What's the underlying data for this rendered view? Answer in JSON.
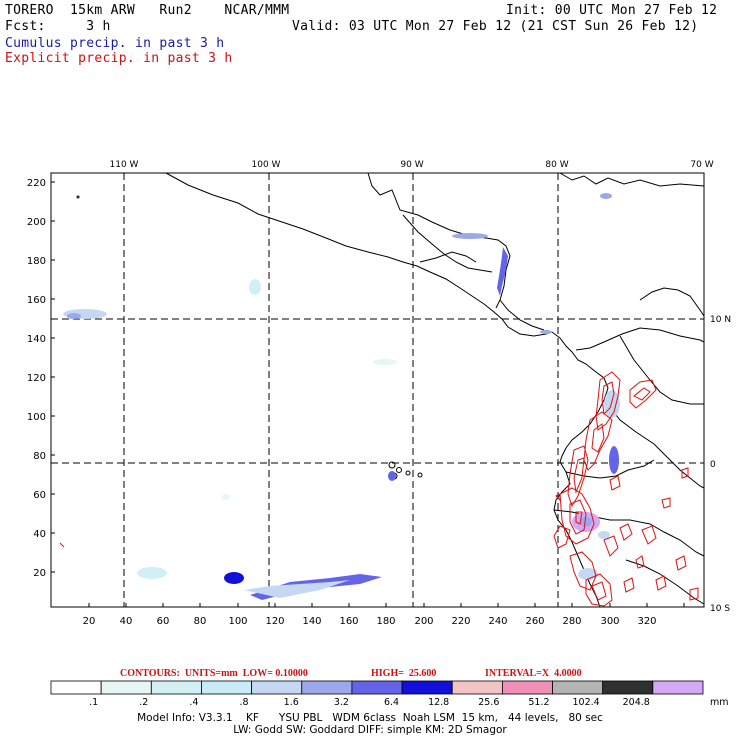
{
  "header": {
    "model": "TORERO  15km ARW   Run2    NCAR/MMM",
    "init": "Init: 00 UTC Mon 27 Feb 12",
    "fcst": "Fcst:     3 h",
    "valid": "Valid: 03 UTC Mon 27 Feb 12 (21 CST Sun 26 Feb 12)",
    "field1": "Cumulus precip. in past 3 h",
    "field2": "Explicit precip. in past 3 h"
  },
  "map": {
    "lon_labels": [
      "110 W",
      "100 W",
      "90 W",
      "80 W",
      "70 W"
    ],
    "lat_labels": [
      "10 N",
      "0",
      "10 S"
    ],
    "x_ticks": [
      "20",
      "40",
      "60",
      "80",
      "100",
      "120",
      "140",
      "160",
      "180",
      "200",
      "220",
      "240",
      "260",
      "280",
      "300",
      "320"
    ],
    "y_ticks": [
      "220",
      "200",
      "180",
      "160",
      "140",
      "120",
      "100",
      "80",
      "60",
      "40",
      "20"
    ],
    "contour_color": "#e01010"
  },
  "contour_caption": {
    "units": "CONTOURS:  UNITS=mm  LOW= 0.10000",
    "high": "HIGH=  25.600",
    "interval": "INTERVAL=X  4.0000"
  },
  "legend": {
    "values": [
      ".1",
      ".2",
      ".4",
      ".8",
      "1.6",
      "3.2",
      "6.4",
      "12.8",
      "25.6",
      "51.2",
      "102.4",
      "204.8"
    ],
    "unit": "mm",
    "colors": [
      "#ffffff",
      "#e6f6f6",
      "#d2f0f4",
      "#c8ecf6",
      "#c4d8f4",
      "#9ca8ec",
      "#6464e8",
      "#1010d8",
      "#f4c4c4",
      "#f090b8",
      "#b4b4b4",
      "#303030",
      "#d4a8f4"
    ]
  },
  "footer": {
    "line1": "Model Info: V3.3.1    KF      YSU PBL   WDM 6class  Noah LSM  15 km,   44 levels,   80 sec",
    "line2": "LW: Godd SW: Goddard DIFF: simple KM: 2D Smagor"
  }
}
